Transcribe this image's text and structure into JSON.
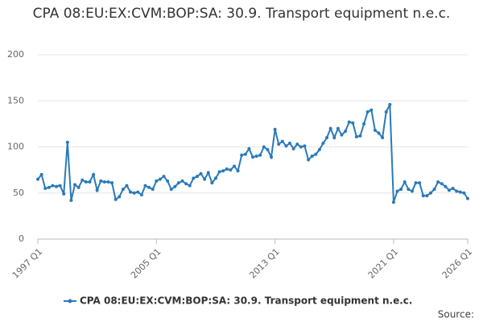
{
  "chart_data": {
    "type": "line",
    "title": "CPA 08:EU:EX:CVM:BOP:SA: 30.9. Transport equipment n.e.c.",
    "source": "Source:",
    "categories": [
      "1997 Q1",
      null,
      null,
      null,
      null,
      null,
      null,
      null,
      null,
      null,
      null,
      null,
      null,
      null,
      null,
      null,
      null,
      null,
      null,
      null,
      null,
      null,
      null,
      null,
      null,
      null,
      null,
      null,
      null,
      null,
      null,
      null,
      "2005 Q1",
      null,
      null,
      null,
      null,
      null,
      null,
      null,
      null,
      null,
      null,
      null,
      null,
      null,
      null,
      null,
      null,
      null,
      null,
      null,
      null,
      null,
      null,
      null,
      null,
      null,
      null,
      null,
      null,
      null,
      null,
      null,
      "2013 Q1",
      null,
      null,
      null,
      null,
      null,
      null,
      null,
      null,
      null,
      null,
      null,
      null,
      null,
      null,
      null,
      null,
      null,
      null,
      null,
      null,
      null,
      null,
      null,
      null,
      null,
      null,
      null,
      null,
      null,
      null,
      null,
      "2021 Q1",
      null,
      null,
      null,
      null,
      null,
      null,
      null,
      null,
      null,
      null,
      null,
      null,
      null,
      null,
      null,
      null,
      null,
      null,
      null,
      "2026 Q1"
    ],
    "series": [
      {
        "name": "CPA 08:EU:EX:CVM:BOP:SA: 30.9. Transport equipment n.e.c.",
        "color": "#2a7ab9",
        "values": [
          65,
          70,
          55,
          56,
          58,
          57,
          58,
          49,
          105,
          42,
          59,
          56,
          64,
          62,
          62,
          70,
          53,
          63,
          62,
          62,
          61,
          43,
          46,
          54,
          58,
          51,
          50,
          51,
          48,
          58,
          56,
          54,
          63,
          65,
          68,
          63,
          54,
          57,
          61,
          63,
          60,
          58,
          66,
          68,
          71,
          65,
          72,
          61,
          66,
          73,
          74,
          76,
          75,
          79,
          74,
          91,
          92,
          98,
          89,
          90,
          91,
          100,
          97,
          89,
          119,
          103,
          106,
          101,
          104,
          98,
          103,
          100,
          101,
          86,
          90,
          92,
          97,
          104,
          110,
          120,
          110,
          120,
          113,
          117,
          127,
          126,
          111,
          112,
          125,
          138,
          140,
          118,
          115,
          110,
          138,
          146,
          40,
          52,
          54,
          62,
          54,
          52,
          61,
          61,
          47,
          47,
          50,
          54,
          62,
          60,
          57,
          53,
          55,
          52,
          51,
          50,
          44
        ]
      }
    ],
    "ylim": [
      0,
      200
    ],
    "yticks": [
      0,
      50,
      100,
      150,
      200
    ],
    "grid": true
  }
}
